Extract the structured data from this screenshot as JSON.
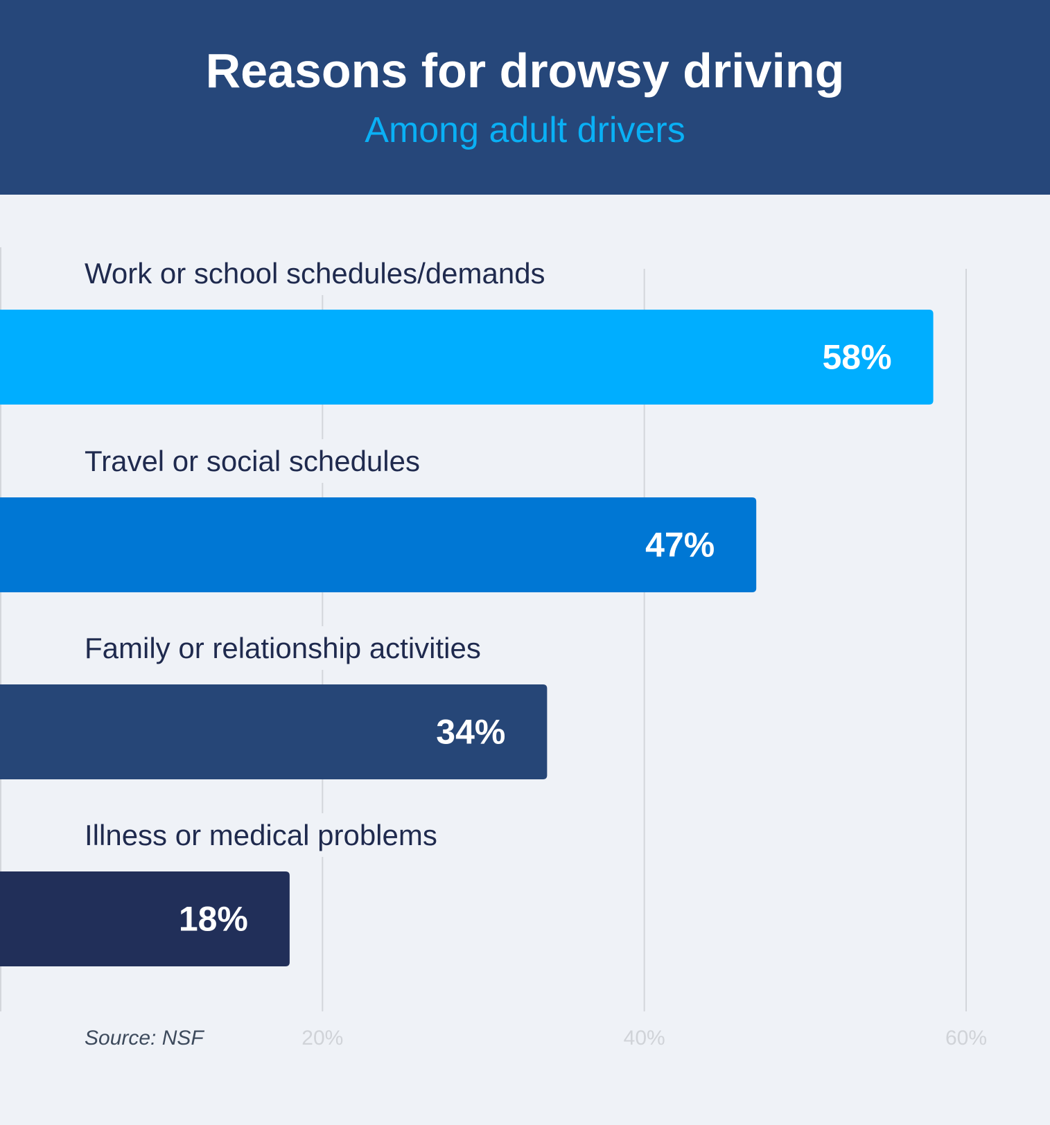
{
  "chart_data": {
    "type": "bar",
    "orientation": "horizontal",
    "title": "Reasons for drowsy driving",
    "subtitle": "Among adult drivers",
    "categories": [
      "Work or school schedules/demands",
      "Travel or social schedules",
      "Family or relationship activities",
      "Illness or medical problems"
    ],
    "values": [
      58,
      47,
      34,
      18
    ],
    "value_labels": [
      "58%",
      "47%",
      "34%",
      "18%"
    ],
    "colors": [
      "#00aeff",
      "#0077d4",
      "#264677",
      "#212f59"
    ],
    "xlim": [
      0,
      60
    ],
    "xticks": [
      20,
      40,
      60
    ],
    "xtick_labels": [
      "20%",
      "40%",
      "60%"
    ],
    "grid": true,
    "source": "Source: NSF"
  },
  "colors": {
    "header": "#26477a",
    "subtitle": "#0ab0f5",
    "background": "#eff2f7",
    "label_text": "#1f2a4e",
    "grid": "#d3d6db"
  }
}
